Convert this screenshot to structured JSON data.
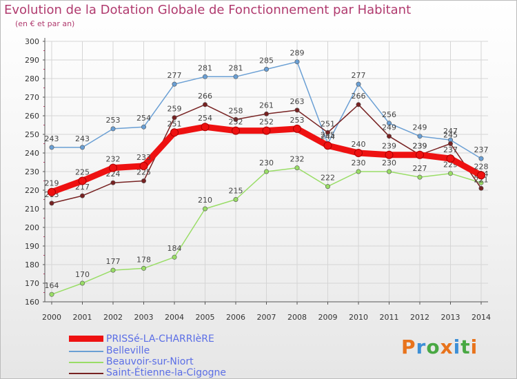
{
  "header": {
    "title": "Evolution de la Dotation Globale de Fonctionnement par Habitant",
    "subtitle": "(en € et par an)"
  },
  "logo": {
    "text": "Proxiti",
    "colors": [
      "#e8731c",
      "#3d8fd6",
      "#49a843",
      "#e8731c",
      "#3d8fd6",
      "#49a843",
      "#e8731c"
    ]
  },
  "colors": {
    "PRISSé-LA-CHARRIèRE": "#ee1111",
    "Belleville": "#6a9fd4",
    "Beauvoir-sur-Niort": "#99dd66",
    "Saint-Étienne-la-Cigogne": "#772222",
    "grid": "#d5d5d5",
    "axis": "#555555",
    "tick_text": "#333333"
  },
  "chart_data": {
    "type": "line",
    "title": "Evolution de la Dotation Globale de Fonctionnement par Habitant",
    "subtitle": "(en € et par an)",
    "x": [
      "2000",
      "2001",
      "2002",
      "2003",
      "2004",
      "2005",
      "2006",
      "2007",
      "2008",
      "2009",
      "2010",
      "2011",
      "2012",
      "2013",
      "2014"
    ],
    "ylim": [
      160,
      300
    ],
    "yticks": [
      "160",
      "170",
      "180",
      "190",
      "200",
      "210",
      "220",
      "230",
      "240",
      "250",
      "260",
      "270",
      "280",
      "290",
      "300"
    ],
    "grid": true,
    "legend_position": "bottom-left",
    "series": [
      {
        "name": "Belleville",
        "values": [
          243,
          243,
          253,
          254,
          277,
          281,
          281,
          285,
          289,
          245,
          277,
          256,
          249,
          247,
          237
        ],
        "labels": [
          "243",
          "243",
          "253",
          "254",
          "277",
          "281",
          "281",
          "285",
          "289",
          "245",
          "277",
          "256",
          "249",
          "247",
          "237"
        ]
      },
      {
        "name": "Beauvoir-sur-Niort",
        "values": [
          164,
          170,
          177,
          178,
          184,
          210,
          215,
          230,
          232,
          222,
          230,
          230,
          227,
          229,
          224
        ],
        "labels": [
          "164",
          "170",
          "177",
          "178",
          "184",
          "210",
          "215",
          "230",
          "232",
          "222",
          "230",
          "230",
          "227",
          "229",
          "224"
        ]
      },
      {
        "name": "Saint-Étienne-la-Cigogne",
        "values": [
          213,
          217,
          224,
          225,
          259,
          266,
          258,
          261,
          263,
          251,
          266,
          249,
          239,
          245,
          221
        ],
        "labels": [
          "213",
          "217",
          "224",
          "225",
          "259",
          "266",
          "258",
          "261",
          "263",
          "251",
          "266",
          "249",
          "239",
          "245",
          "221"
        ]
      },
      {
        "name": "PRISSé-LA-CHARRIèRE",
        "values": [
          219,
          225,
          232,
          233,
          251,
          254,
          252,
          252,
          253,
          244,
          240,
          239,
          239,
          237,
          228
        ],
        "labels": [
          "219",
          "225",
          "232",
          "233",
          "251",
          "254",
          "252",
          "252",
          "253",
          "244",
          "240",
          "239",
          "239",
          "237",
          "228"
        ]
      }
    ]
  },
  "legend": {
    "items": [
      {
        "label": "PRISSé-LA-CHARRIèRE",
        "key": "PRISSé-LA-CHARRIèRE"
      },
      {
        "label": "Belleville",
        "key": "Belleville"
      },
      {
        "label": "Beauvoir-sur-Niort",
        "key": "Beauvoir-sur-Niort"
      },
      {
        "label": "Saint-Étienne-la-Cigogne",
        "key": "Saint-Étienne-la-Cigogne"
      }
    ]
  }
}
